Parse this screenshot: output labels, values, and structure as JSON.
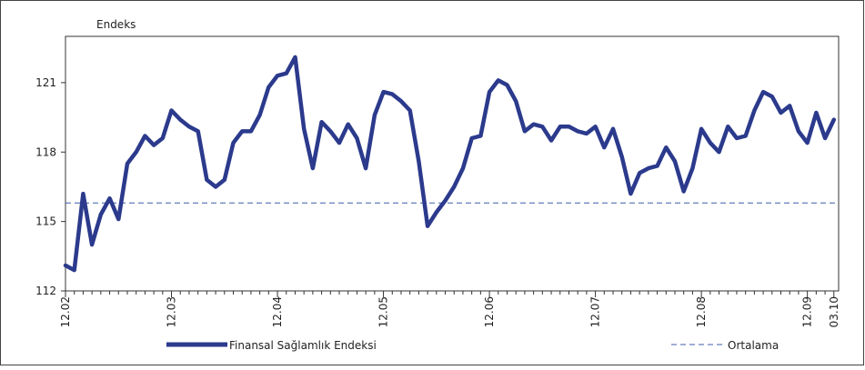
{
  "chart_data": {
    "type": "line",
    "y_label": "Endeks",
    "categories": [
      "12.02",
      null,
      null,
      null,
      null,
      null,
      null,
      null,
      null,
      null,
      null,
      null,
      "12.03",
      null,
      null,
      null,
      null,
      null,
      null,
      null,
      null,
      null,
      null,
      null,
      "12.04",
      null,
      null,
      null,
      null,
      null,
      null,
      null,
      null,
      null,
      null,
      null,
      "12.05",
      null,
      null,
      null,
      null,
      null,
      null,
      null,
      null,
      null,
      null,
      null,
      "12.06",
      null,
      null,
      null,
      null,
      null,
      null,
      null,
      null,
      null,
      null,
      null,
      "12.07",
      null,
      null,
      null,
      null,
      null,
      null,
      null,
      null,
      null,
      null,
      null,
      "12.08",
      null,
      null,
      null,
      null,
      null,
      null,
      null,
      null,
      null,
      null,
      null,
      "12.09",
      null,
      null,
      "03.10"
    ],
    "series": [
      {
        "name": "Finansal Sağlamlık Endeksi",
        "color": "#2b3a8c",
        "values": [
          113.1,
          112.9,
          116.2,
          114.0,
          115.3,
          116.0,
          115.1,
          117.5,
          118.0,
          118.7,
          118.3,
          118.6,
          119.8,
          119.4,
          119.1,
          118.9,
          116.8,
          116.5,
          116.8,
          118.4,
          118.9,
          118.9,
          119.6,
          120.8,
          121.3,
          121.4,
          122.1,
          119.0,
          117.3,
          119.3,
          118.9,
          118.4,
          119.2,
          118.6,
          117.3,
          119.6,
          120.6,
          120.5,
          120.2,
          119.8,
          117.6,
          114.8,
          115.4,
          115.9,
          116.5,
          117.3,
          118.6,
          118.7,
          120.6,
          121.1,
          120.9,
          120.2,
          118.9,
          119.2,
          119.1,
          118.5,
          119.1,
          119.1,
          118.9,
          118.8,
          119.1,
          118.2,
          119.0,
          117.8,
          116.2,
          117.1,
          117.3,
          117.4,
          118.2,
          117.6,
          116.3,
          117.3,
          119.0,
          118.4,
          118.0,
          119.1,
          118.6,
          118.7,
          119.8,
          120.6,
          120.4,
          119.7,
          120.0,
          118.9,
          118.4,
          119.7,
          118.6,
          119.4
        ]
      }
    ],
    "average": {
      "name": "Ortalama",
      "value": 115.8,
      "color": "#3f5ea8"
    },
    "ylim": [
      112,
      123
    ],
    "yticks": [
      112,
      115,
      118,
      121
    ]
  }
}
